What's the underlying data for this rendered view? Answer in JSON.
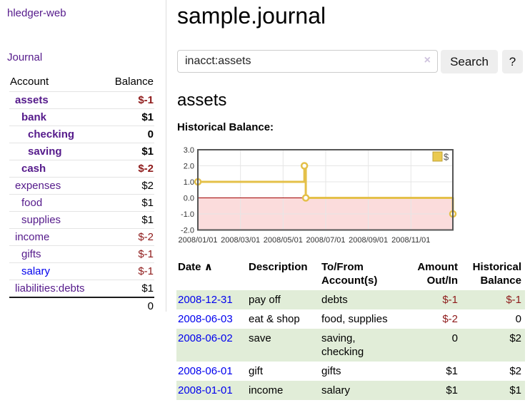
{
  "app": {
    "title": "hledger-web"
  },
  "sidebar": {
    "journal_link": "Journal",
    "accounts": {
      "header_account": "Account",
      "header_balance": "Balance",
      "rows": [
        {
          "name": "assets",
          "balance": "$-1",
          "indent": 1,
          "bold": true,
          "negative": true,
          "unvisited": false
        },
        {
          "name": "bank",
          "balance": "$1",
          "indent": 2,
          "bold": true,
          "negative": false,
          "unvisited": false
        },
        {
          "name": "checking",
          "balance": "0",
          "indent": 3,
          "bold": true,
          "negative": false,
          "unvisited": false
        },
        {
          "name": "saving",
          "balance": "$1",
          "indent": 3,
          "bold": true,
          "negative": false,
          "unvisited": false
        },
        {
          "name": "cash",
          "balance": "$-2",
          "indent": 2,
          "bold": true,
          "negative": true,
          "unvisited": false
        },
        {
          "name": "expenses",
          "balance": "$2",
          "indent": 1,
          "bold": false,
          "negative": false,
          "unvisited": false
        },
        {
          "name": "food",
          "balance": "$1",
          "indent": 2,
          "bold": false,
          "negative": false,
          "unvisited": false
        },
        {
          "name": "supplies",
          "balance": "$1",
          "indent": 2,
          "bold": false,
          "negative": false,
          "unvisited": false
        },
        {
          "name": "income",
          "balance": "$-2",
          "indent": 1,
          "bold": false,
          "negative": true,
          "unvisited": false
        },
        {
          "name": "gifts",
          "balance": "$-1",
          "indent": 2,
          "bold": false,
          "negative": true,
          "unvisited": false
        },
        {
          "name": "salary",
          "balance": "$-1",
          "indent": 2,
          "bold": false,
          "negative": true,
          "unvisited": true
        },
        {
          "name": "liabilities:debts",
          "balance": "$1",
          "indent": 1,
          "bold": false,
          "negative": false,
          "unvisited": false
        }
      ],
      "total": "0"
    }
  },
  "main": {
    "title": "sample.journal",
    "search": {
      "value": "inacct:assets",
      "clear_icon": "×",
      "search_button": "Search",
      "help_button": "?"
    },
    "account_heading": "assets",
    "chart_heading": "Historical Balance:"
  },
  "chart_data": {
    "type": "line",
    "step": true,
    "title": "Historical Balance:",
    "series": [
      {
        "name": "$",
        "points": [
          [
            "2008/01/01",
            1
          ],
          [
            "2008/06/01",
            2
          ],
          [
            "2008/06/03",
            0
          ],
          [
            "2008/12/31",
            -1
          ]
        ]
      }
    ],
    "x_ticks": [
      "2008/01/01",
      "2008/03/01",
      "2008/05/01",
      "2008/07/01",
      "2008/09/01",
      "2008/11/01"
    ],
    "y_ticks": [
      "3.0",
      "2.0",
      "1.0",
      "0.0",
      "-1.0",
      "-2.0"
    ],
    "ylim": [
      -2,
      3
    ],
    "xlim": [
      "2008/01/01",
      "2008/12/31"
    ],
    "grid": true,
    "legend": {
      "label": "$",
      "position": "top-right"
    },
    "colors": {
      "line": "#e4c049",
      "marker_fill": "#ffffff",
      "negative_region": "#fbdcdc",
      "zero_line": "#a00000",
      "grid": "#e6e6e6",
      "border": "#555555",
      "legend_fill": "#eac94f",
      "legend_border": "#bfa238",
      "axis_text": "#333333"
    }
  },
  "register": {
    "headers": {
      "date": "Date",
      "sort_icon": "∧",
      "description": "Description",
      "accounts": "To/From Account(s)",
      "amount": "Amount Out/In",
      "balance": "Historical Balance"
    },
    "rows": [
      {
        "date": "2008-12-31",
        "description": "pay off",
        "accounts": [
          "debts"
        ],
        "amount": "$-1",
        "balance": "$-1",
        "amount_negative": true,
        "balance_negative": true
      },
      {
        "date": "2008-06-03",
        "description": "eat & shop",
        "accounts": [
          "food, supplies"
        ],
        "amount": "$-2",
        "balance": "0",
        "amount_negative": true,
        "balance_negative": false
      },
      {
        "date": "2008-06-02",
        "description": "save",
        "accounts": [
          "saving,",
          "checking"
        ],
        "amount": "0",
        "balance": "$2",
        "amount_negative": false,
        "balance_negative": false
      },
      {
        "date": "2008-06-01",
        "description": "gift",
        "accounts": [
          "gifts"
        ],
        "amount": "$1",
        "balance": "$2",
        "amount_negative": false,
        "balance_negative": false
      },
      {
        "date": "2008-01-01",
        "description": "income",
        "accounts": [
          "salary"
        ],
        "amount": "$1",
        "balance": "$1",
        "amount_negative": false,
        "balance_negative": false
      }
    ]
  }
}
